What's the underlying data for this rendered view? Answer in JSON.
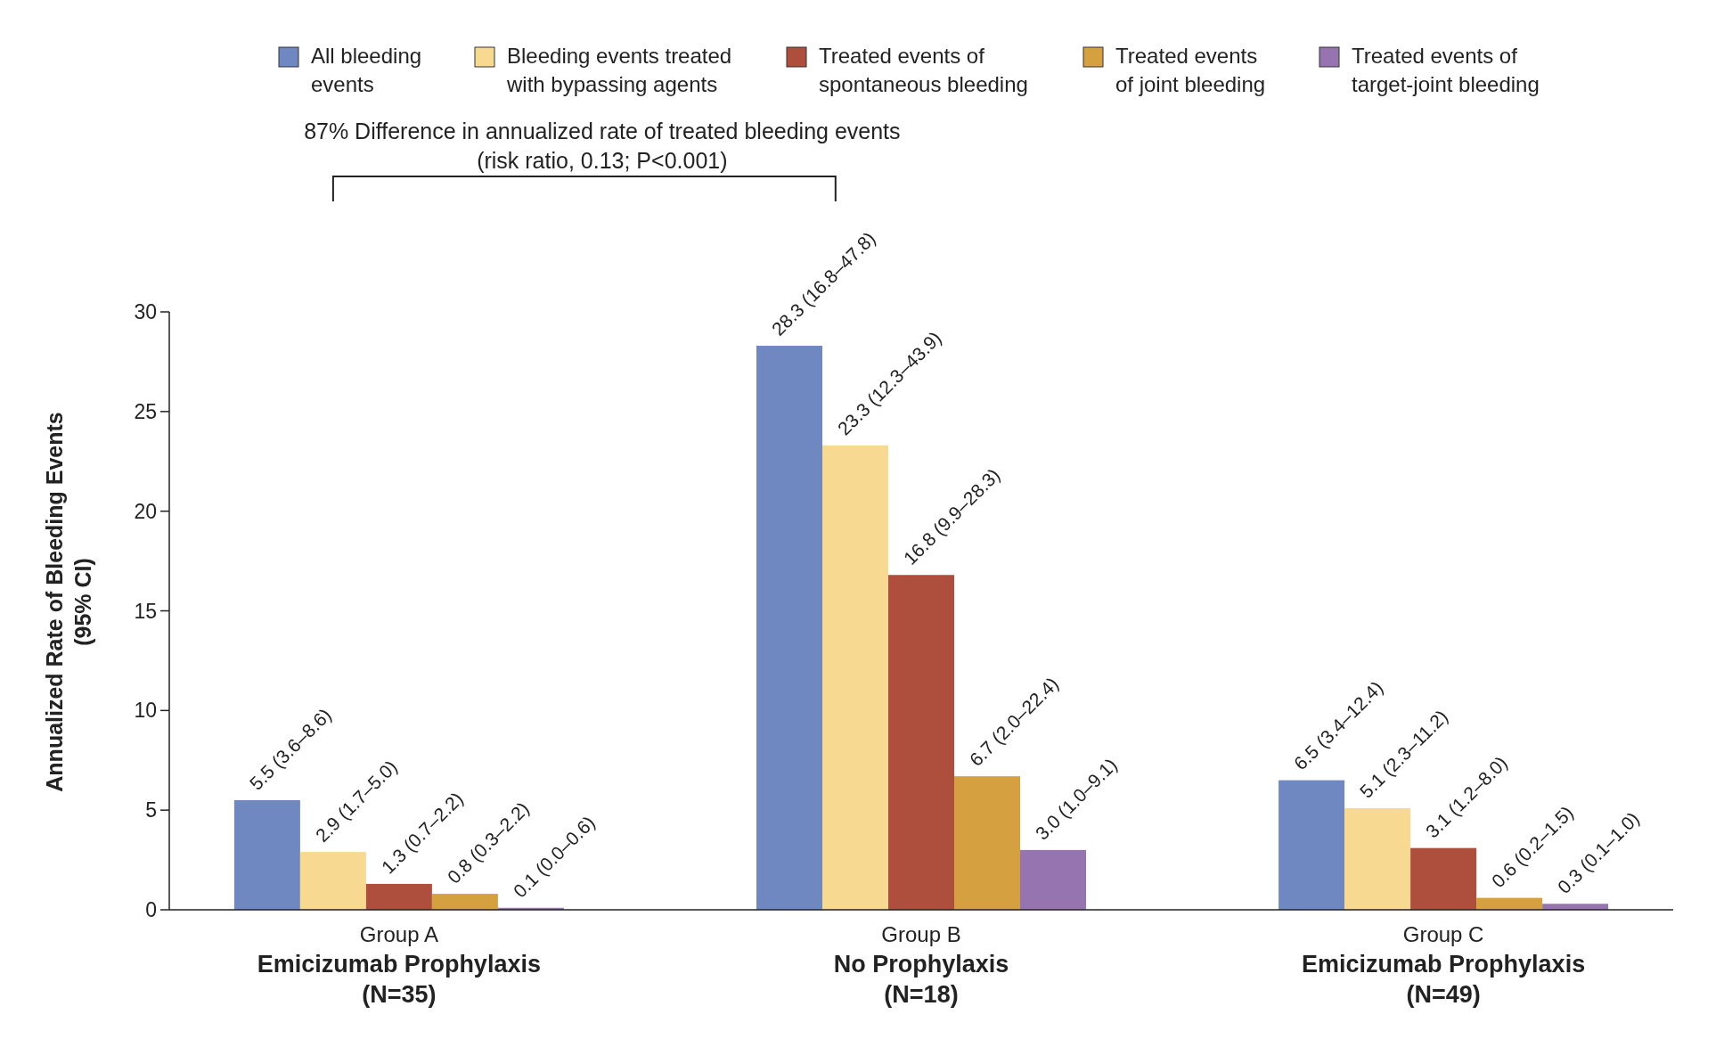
{
  "chart_data": {
    "type": "bar",
    "ylabel": "Annualized Rate of Bleeding Events\n(95% CI)",
    "categories": [
      "Group A\nEmicizumab Prophylaxis\n(N=35)",
      "Group B\nNo Prophylaxis\n(N=18)",
      "Group C\nEmicizumab Prophylaxis\n(N=49)"
    ],
    "series": [
      {
        "name": "All bleeding\nevents",
        "color": "#6f88c2",
        "values": [
          5.5,
          28.3,
          6.5
        ],
        "value_labels": [
          "5.5 (3.6–8.6)",
          "28.3 (16.8–47.8)",
          "6.5 (3.4–12.4)"
        ]
      },
      {
        "name": "Bleeding events treated\nwith bypassing agents",
        "color": "#f8d992",
        "values": [
          2.9,
          23.3,
          5.1
        ],
        "value_labels": [
          "2.9 (1.7–5.0)",
          "23.3 (12.3–43.9)",
          "5.1 (2.3–11.2)"
        ]
      },
      {
        "name": "Treated events of\nspontaneous bleeding",
        "color": "#ad4f3c",
        "values": [
          1.3,
          16.8,
          3.1
        ],
        "value_labels": [
          "1.3 (0.7–2.2)",
          "16.8 (9.9–28.3)",
          "3.1 (1.2–8.0)"
        ]
      },
      {
        "name": "Treated events\nof joint bleeding",
        "color": "#d4a040",
        "values": [
          0.8,
          6.7,
          0.6
        ],
        "value_labels": [
          "0.8 (0.3–2.2)",
          "6.7 (2.0–22.4)",
          "0.6 (0.2–1.5)"
        ]
      },
      {
        "name": "Treated events of\ntarget-joint bleeding",
        "color": "#9674b0",
        "values": [
          0.1,
          3.0,
          0.3
        ],
        "value_labels": [
          "0.1 (0.0–0.6)",
          "3.0 (1.0–9.1)",
          "0.3 (0.1–1.0)"
        ]
      }
    ],
    "ylim": [
      0,
      30
    ],
    "yticks": [
      0,
      5,
      10,
      15,
      20,
      25,
      30
    ],
    "grid": false,
    "legend": "top",
    "annotations": [
      "87% Difference in annualized rate of treated bleeding events\n(risk ratio, 0.13; P<0.001)"
    ]
  }
}
